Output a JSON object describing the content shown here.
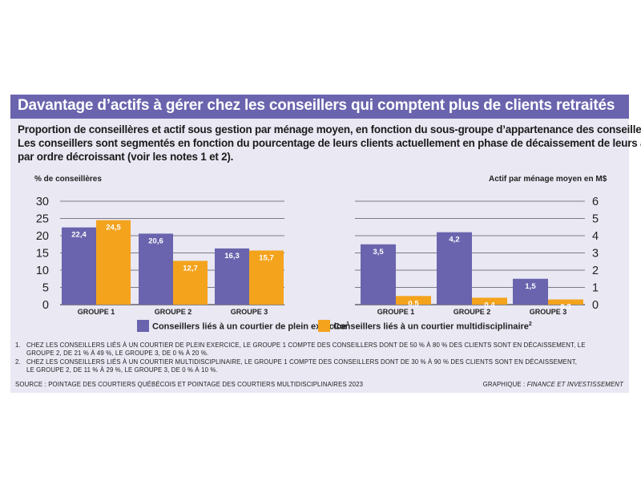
{
  "header": {
    "title": "Davantage d’actifs à gérer chez les conseillers qui comptent plus de clients retraités",
    "subtitle_lines": [
      "Proportion de conseillères et actif sous gestion par ménage moyen, en fonction du sous-groupe d’appartenance des conseillers.",
      "Les conseillers sont segmentés en fonction du pourcentage de leurs clients actuellement en phase de décaissement de leurs actifs,",
      "par ordre décroissant (voir les notes 1 et 2)."
    ]
  },
  "colors": {
    "banner": "#6a64ae",
    "panel": "#e9e8f3",
    "purple_series": "#6a64ae",
    "orange_series": "#f4a31d"
  },
  "legend": {
    "items": [
      {
        "label": "Conseillers liés à un courtier de plein exercice",
        "sup": "1",
        "color": "#6a64ae"
      },
      {
        "label": "Conseillers liés à un courtier multidisciplinaire",
        "sup": "2",
        "color": "#f4a31d"
      }
    ]
  },
  "chart_data": [
    {
      "type": "bar",
      "ylabel": "% de conseillères",
      "categories": [
        "GROUPE 1",
        "GROUPE 2",
        "GROUPE 3"
      ],
      "ylim": [
        0,
        30
      ],
      "yticks": [
        0,
        5,
        10,
        15,
        20,
        25,
        30
      ],
      "grid": true,
      "series": [
        {
          "name": "Conseillers liés à un courtier de plein exercice",
          "values": [
            22.4,
            20.6,
            16.3
          ],
          "labels": [
            "22,4",
            "20,6",
            "16,3"
          ],
          "color": "#6a64ae"
        },
        {
          "name": "Conseillers liés à un courtier multidisciplinaire",
          "values": [
            24.5,
            12.7,
            15.7
          ],
          "labels": [
            "24,5",
            "12,7",
            "15,7"
          ],
          "color": "#f4a31d"
        }
      ]
    },
    {
      "type": "bar",
      "ylabel": "Actif par ménage moyen en M$",
      "categories": [
        "GROUPE 1",
        "GROUPE 2",
        "GROUPE 3"
      ],
      "ylim": [
        0,
        6
      ],
      "yticks": [
        0,
        1,
        2,
        3,
        4,
        5,
        6
      ],
      "grid": true,
      "series": [
        {
          "name": "Conseillers liés à un courtier de plein exercice",
          "values": [
            3.5,
            4.2,
            1.5
          ],
          "labels": [
            "3,5",
            "4,2",
            "1,5"
          ],
          "color": "#6a64ae"
        },
        {
          "name": "Conseillers liés à un courtier multidisciplinaire",
          "values": [
            0.5,
            0.4,
            0.3
          ],
          "labels": [
            "0,5",
            "0,4",
            "0,3"
          ],
          "color": "#f4a31d"
        }
      ]
    }
  ],
  "notes": [
    {
      "number": "1.",
      "lines": [
        "CHEZ LES CONSEILLERS LIÉS À UN COURTIER DE PLEIN EXERCICE, LE GROUPE 1 COMPTE DES CONSEILLERS DONT DE 50 % À 80 % DES CLIENTS SONT EN DÉCAISSEMENT, LE",
        "GROUPE 2, DE 21 % À 49 %, LE GROUPE 3, DE 0 % À 20 %."
      ]
    },
    {
      "number": "2.",
      "lines": [
        "CHEZ LES CONSEILLERS LIÉS À UN COURTIER MULTIDISCIPLINAIRE, LE GROUPE 1 COMPTE DES CONSEILLERS DONT DE 30 % À 90 % DES CLIENTS SONT EN DÉCAISSEMENT,",
        "LE GROUPE 2, DE 11 % À 29 %, LE GROUPE 3, DE 0 % À 10 %."
      ]
    }
  ],
  "footer": {
    "source": "SOURCE : POINTAGE DES COURTIERS QUÉBÉCOIS ET POINTAGE DES COURTIERS MULTIDISCIPLINAIRES 2023",
    "credit_prefix": "GRAPHIQUE : ",
    "credit_name": "FINANCE ET INVESTISSEMENT"
  }
}
